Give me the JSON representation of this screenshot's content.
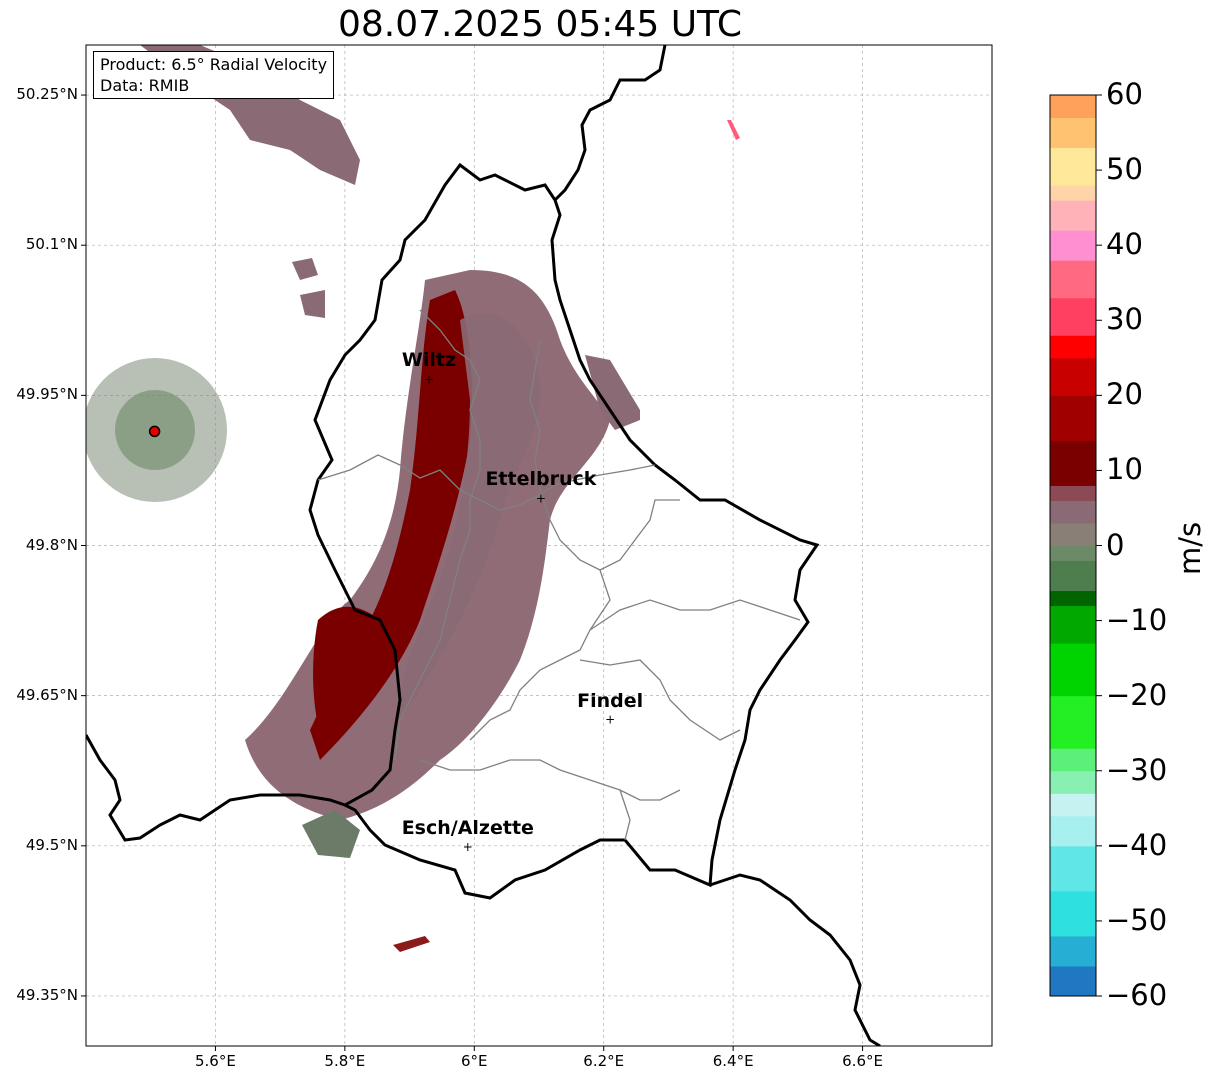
{
  "title": "08.07.2025 05:45 UTC",
  "info": {
    "product": "Product: 6.5° Radial Velocity",
    "source": "Data: RMIB"
  },
  "map": {
    "lon_range": [
      5.4,
      6.8
    ],
    "lat_range": [
      49.3,
      50.3
    ],
    "grid": true,
    "lat_ticks": [
      {
        "value": 50.25,
        "label": "50.25°N"
      },
      {
        "value": 50.1,
        "label": "50.1°N"
      },
      {
        "value": 49.95,
        "label": "49.95°N"
      },
      {
        "value": 49.8,
        "label": "49.8°N"
      },
      {
        "value": 49.65,
        "label": "49.65°N"
      },
      {
        "value": 49.5,
        "label": "49.5°N"
      },
      {
        "value": 49.35,
        "label": "49.35°N"
      }
    ],
    "lon_ticks": [
      {
        "value": 5.6,
        "label": "5.6°E"
      },
      {
        "value": 5.8,
        "label": "5.8°E"
      },
      {
        "value": 6.0,
        "label": "6°E"
      },
      {
        "value": 6.2,
        "label": "6.2°E"
      },
      {
        "value": 6.4,
        "label": "6.4°E"
      },
      {
        "value": 6.6,
        "label": "6.6°E"
      }
    ],
    "radar_site": {
      "lon": 5.506,
      "lat": 49.914,
      "color": "#e60000"
    },
    "cities": [
      {
        "name": "Wiltz",
        "lon": 5.93,
        "lat": 49.966
      },
      {
        "name": "Ettelbruck",
        "lon": 6.103,
        "lat": 49.847
      },
      {
        "name": "Findel",
        "lon": 6.21,
        "lat": 49.626
      },
      {
        "name": "Esch/Alzette",
        "lon": 5.99,
        "lat": 49.499
      }
    ]
  },
  "colorbar": {
    "label": "m/s",
    "range": [
      -60,
      60
    ],
    "ticks": [
      {
        "value": 60,
        "label": "60"
      },
      {
        "value": 50,
        "label": "50"
      },
      {
        "value": 40,
        "label": "40"
      },
      {
        "value": 30,
        "label": "30"
      },
      {
        "value": 20,
        "label": "20"
      },
      {
        "value": 10,
        "label": "10"
      },
      {
        "value": 0,
        "label": "0"
      },
      {
        "value": -10,
        "label": "−10"
      },
      {
        "value": -20,
        "label": "−20"
      },
      {
        "value": -30,
        "label": "−30"
      },
      {
        "value": -40,
        "label": "−40"
      },
      {
        "value": -50,
        "label": "−50"
      },
      {
        "value": -60,
        "label": "−60"
      }
    ],
    "stops": [
      {
        "value": -60,
        "color": "#1f78c1"
      },
      {
        "value": -56,
        "color": "#27aed4"
      },
      {
        "value": -52,
        "color": "#2ee0e0"
      },
      {
        "value": -46,
        "color": "#5fe6e6"
      },
      {
        "value": -40,
        "color": "#a8f0f0"
      },
      {
        "value": -36,
        "color": "#c6f2f2"
      },
      {
        "value": -33,
        "color": "#88f0b0"
      },
      {
        "value": -30,
        "color": "#5cf07a"
      },
      {
        "value": -27,
        "color": "#22f022"
      },
      {
        "value": -20,
        "color": "#00d400"
      },
      {
        "value": -13,
        "color": "#00a800"
      },
      {
        "value": -8,
        "color": "#006400"
      },
      {
        "value": -6,
        "color": "#4e7d4e"
      },
      {
        "value": -2,
        "color": "#6c8a68"
      },
      {
        "value": 0,
        "color": "#8a7f76"
      },
      {
        "value": 3,
        "color": "#8a6a74"
      },
      {
        "value": 6,
        "color": "#8b4a55"
      },
      {
        "value": 8,
        "color": "#7a0000"
      },
      {
        "value": 14,
        "color": "#a00000"
      },
      {
        "value": 20,
        "color": "#c80000"
      },
      {
        "value": 25,
        "color": "#ff0000"
      },
      {
        "value": 28,
        "color": "#ff4060"
      },
      {
        "value": 33,
        "color": "#ff6a82"
      },
      {
        "value": 38,
        "color": "#ff8fd0"
      },
      {
        "value": 42,
        "color": "#ffb3b8"
      },
      {
        "value": 46,
        "color": "#ffd4a8"
      },
      {
        "value": 48,
        "color": "#ffe89a"
      },
      {
        "value": 53,
        "color": "#ffc270"
      },
      {
        "value": 57,
        "color": "#ffa15a"
      },
      {
        "value": 60,
        "color": "#ff9a50"
      }
    ]
  }
}
